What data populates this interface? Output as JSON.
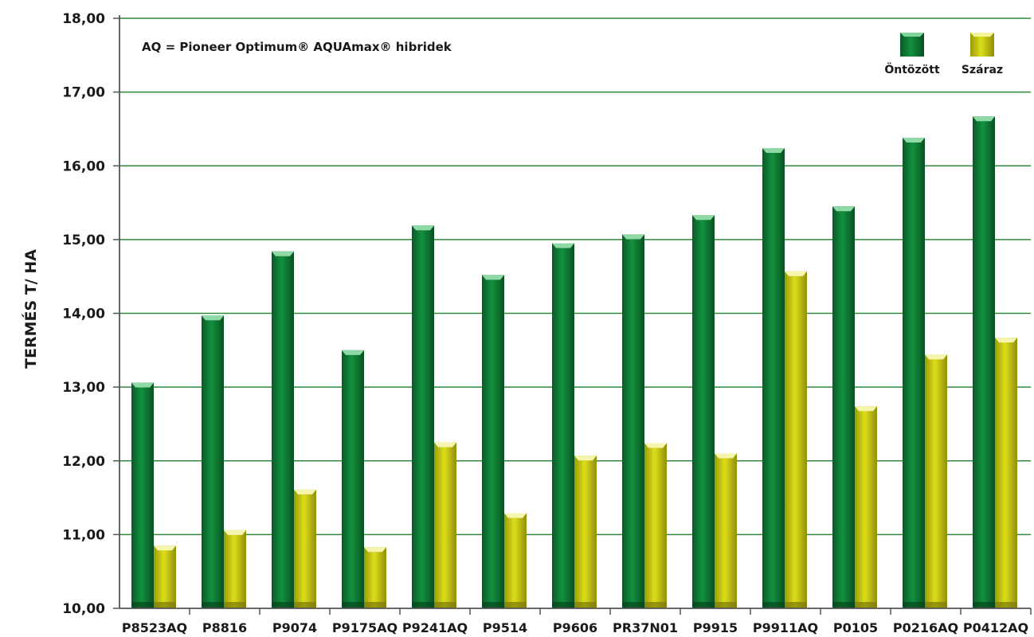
{
  "chart_data": {
    "type": "bar",
    "ylabel": "TERMÉS T/ HA",
    "annotation": "AQ = Pioneer Optimum® AQUAmax® hibridek",
    "ylim": [
      10,
      18
    ],
    "ytick_step": 1,
    "ytick_labels": [
      "10,00",
      "11,00",
      "12,00",
      "13,00",
      "14,00",
      "15,00",
      "16,00",
      "17,00",
      "18,00"
    ],
    "grid": true,
    "legend_position": "top-right",
    "categories": [
      "P8523AQ",
      "P8816",
      "P9074",
      "P9175AQ",
      "P9241AQ",
      "P9514",
      "P9606",
      "PR37N01",
      "P9915",
      "P9911AQ",
      "P0105",
      "P0216AQ",
      "P0412AQ"
    ],
    "series": [
      {
        "name": "Öntözött",
        "color": "#0b7a35",
        "values": [
          13.06,
          13.97,
          14.84,
          13.5,
          15.19,
          14.52,
          14.95,
          15.07,
          15.33,
          16.24,
          15.45,
          16.38,
          16.67
        ]
      },
      {
        "name": "Száraz",
        "color": "#c9c90a",
        "values": [
          10.85,
          11.06,
          11.61,
          10.83,
          12.25,
          11.29,
          12.07,
          12.24,
          12.1,
          14.57,
          12.74,
          13.44,
          13.67
        ]
      }
    ]
  }
}
